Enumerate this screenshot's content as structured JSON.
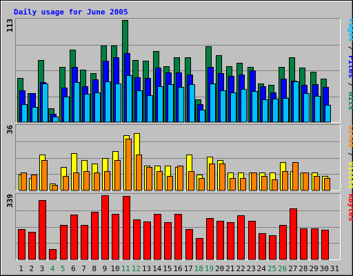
{
  "chart_data": {
    "type": "bar",
    "title": "Daily usage for June 2005",
    "days": [
      "1",
      "2",
      "3",
      "4",
      "5",
      "6",
      "7",
      "8",
      "9",
      "10",
      "11",
      "12",
      "13",
      "14",
      "15",
      "16",
      "17",
      "18",
      "19",
      "20",
      "21",
      "22",
      "23",
      "24",
      "25",
      "26",
      "27",
      "28",
      "29",
      "30",
      "31"
    ],
    "weekend_days": [
      "4",
      "5",
      "11",
      "12",
      "18",
      "19",
      "25",
      "26"
    ],
    "panels": [
      {
        "id": "hits",
        "ymax": 113,
        "ymax_label": "113",
        "right_label_parts": [
          {
            "text": "Pages",
            "color": "#00c0ff"
          },
          {
            "text": " / ",
            "color": "#000000"
          },
          {
            "text": "Files",
            "color": "#0000ff"
          },
          {
            "text": " / ",
            "color": "#000000"
          },
          {
            "text": "Hits",
            "color": "#008040"
          }
        ],
        "series": [
          {
            "name": "Hits",
            "color": "#008040",
            "values": [
              49,
              32,
              69,
              15,
              61,
              80,
              58,
              54,
              85,
              85,
              113,
              69,
              68,
              79,
              62,
              72,
              72,
              25,
              84,
              74,
              62,
              66,
              61,
              43,
              41,
              61,
              72,
              60,
              56,
              48,
              null
            ]
          },
          {
            "name": "Files",
            "color": "#0000ff",
            "values": [
              35,
              32,
              44,
              9,
              38,
              61,
              40,
              47,
              68,
              72,
              76,
              50,
              49,
              60,
              55,
              55,
              53,
              20,
              61,
              54,
              51,
              53,
              57,
              40,
              33,
              48,
              46,
              41,
              42,
              39,
              null
            ]
          },
          {
            "name": "Pages",
            "color": "#00c0ff",
            "values": [
              20,
              17,
              43,
              6,
              28,
              44,
              31,
              33,
              45,
              43,
              52,
              35,
              30,
              40,
              42,
              39,
              42,
              14,
              43,
              35,
              33,
              37,
              34,
              25,
              26,
              27,
              45,
              32,
              29,
              19,
              null
            ]
          }
        ]
      },
      {
        "id": "visits",
        "ymax": 36,
        "ymax_label": "36",
        "right_label_parts": [
          {
            "text": "Sites",
            "color": "#ff8000"
          },
          {
            "text": " / ",
            "color": "#000000"
          },
          {
            "text": "Visits",
            "color": "#ffff00"
          }
        ],
        "series": [
          {
            "name": "Visits",
            "color": "#ffff00",
            "values": [
              9,
              7,
              20,
              4,
              13,
              21,
              17,
              15,
              18,
              22,
              31,
              32,
              14,
              14,
              14,
              13,
              20,
              9,
              19,
              17,
              10,
              10,
              10,
              10,
              10,
              16,
              11,
              10,
              10,
              8,
              null
            ]
          },
          {
            "name": "Sites",
            "color": "#ff8000",
            "values": [
              10,
              9,
              17,
              3,
              8,
              10,
              11,
              10,
              11,
              17,
              29,
              20,
              13,
              11,
              8,
              14,
              11,
              7,
              15,
              15,
              7,
              7,
              10,
              8,
              6,
              11,
              16,
              10,
              8,
              7,
              null
            ]
          }
        ]
      },
      {
        "id": "kbytes",
        "ymax": 339,
        "ymax_label": "339",
        "right_label_parts": [
          {
            "text": "KBytes",
            "color": "#ff0000"
          }
        ],
        "series": [
          {
            "name": "KBytes",
            "color": "#ff0000",
            "values": [
              160,
              144,
              313,
              55,
              184,
              236,
              184,
              251,
              339,
              242,
              334,
              212,
              200,
              241,
              196,
              240,
              162,
              114,
              217,
              205,
              197,
              235,
              203,
              137,
              128,
              181,
              270,
              164,
              164,
              157,
              null
            ]
          }
        ]
      }
    ]
  },
  "colors": {
    "background": "#c0c0c0",
    "title": "#0000ff",
    "axis_text": "#000000",
    "weekend_text": "#008040",
    "grid": "#808080"
  }
}
